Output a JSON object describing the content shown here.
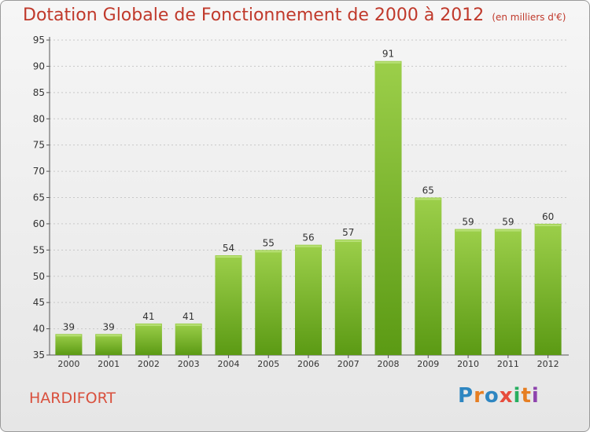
{
  "title": "Dotation Globale de Fonctionnement de 2000 à 2012",
  "subtitle": "(en milliers d'€)",
  "town": "HARDIFORT",
  "logo": {
    "letters": [
      "P",
      "r",
      "o",
      "x",
      "i",
      "t",
      "i"
    ],
    "colors": [
      "#2e86c1",
      "#e67e22",
      "#2e86c1",
      "#e74c3c",
      "#27ae60",
      "#e67e22",
      "#8e44ad"
    ]
  },
  "colors": {
    "bar_top": "#9ccf4a",
    "bar_bottom": "#5b9a14",
    "title": "#c0392b"
  },
  "chart_data": {
    "type": "bar",
    "categories": [
      "2000",
      "2001",
      "2002",
      "2003",
      "2004",
      "2005",
      "2006",
      "2007",
      "2008",
      "2009",
      "2010",
      "2011",
      "2012"
    ],
    "values": [
      39,
      39,
      41,
      41,
      54,
      55,
      56,
      57,
      91,
      65,
      59,
      59,
      60
    ],
    "ylim": [
      35,
      95
    ],
    "yticks": [
      35,
      40,
      45,
      50,
      55,
      60,
      65,
      70,
      75,
      80,
      85,
      90,
      95
    ],
    "grid": true
  }
}
